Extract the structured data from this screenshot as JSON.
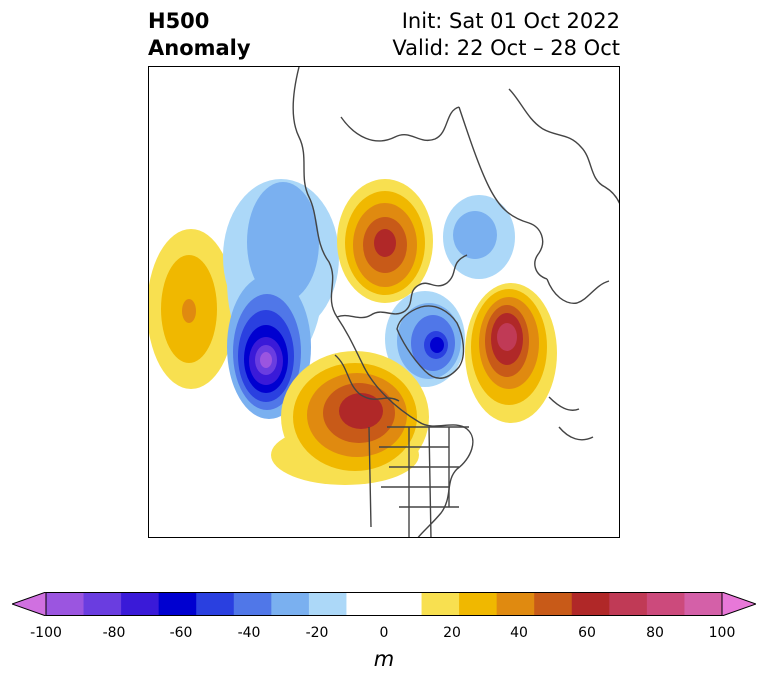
{
  "header": {
    "variable": "H500",
    "product": "Anomaly",
    "init": "Init: Sat 01 Oct 2022",
    "valid": "Valid: 22 Oct – 28 Oct"
  },
  "colorbar": {
    "unit": "m",
    "ticks": [
      "-100",
      "-80",
      "-60",
      "-40",
      "-20",
      "0",
      "20",
      "40",
      "60",
      "80",
      "100"
    ],
    "min": -100,
    "max": 100,
    "colors": [
      "#d070e0",
      "#9b55e0",
      "#6a3de0",
      "#3a1ad8",
      "#0000d0",
      "#2a40e0",
      "#5077e8",
      "#7ab0f0",
      "#acd8f8",
      "#ffffff",
      "#ffffff",
      "#f8e050",
      "#f0b800",
      "#e08a10",
      "#c85a18",
      "#b02828",
      "#c03a56",
      "#cc4a7c",
      "#d460a8",
      "#e878d8"
    ]
  },
  "map": {
    "anomalies": [
      {
        "region": "North Pacific",
        "sign": "positive",
        "peak_m": 30
      },
      {
        "region": "Gulf of Alaska / western Canada",
        "sign": "negative",
        "peak_m": -80
      },
      {
        "region": "Alaska / Arctic",
        "sign": "negative",
        "peak_m": -30
      },
      {
        "region": "Arctic (north of Siberia)",
        "sign": "positive",
        "peak_m": 60
      },
      {
        "region": "Northern Europe / Scandinavia",
        "sign": "negative",
        "peak_m": -30
      },
      {
        "region": "Greenland",
        "sign": "negative",
        "peak_m": -60
      },
      {
        "region": "North Atlantic",
        "sign": "positive",
        "peak_m": 80
      },
      {
        "region": "Central Canada / Hudson Bay",
        "sign": "positive",
        "peak_m": 60
      }
    ]
  }
}
